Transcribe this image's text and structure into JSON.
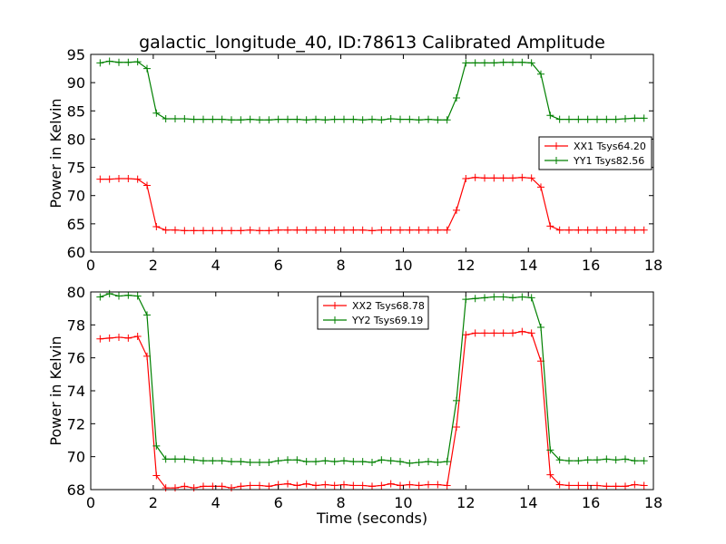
{
  "title": "galactic_longitude_40, ID:78613 Calibrated Amplitude",
  "xlabel": "Time (seconds)",
  "colors": {
    "red": "#ff0000",
    "green": "#008000"
  },
  "chart_data": [
    {
      "type": "line",
      "title": "galactic_longitude_40, ID:78613 Calibrated Amplitude",
      "xlabel": "",
      "ylabel": "Power in Kelvin",
      "xlim": [
        0,
        18
      ],
      "ylim": [
        60,
        95
      ],
      "xticks": [
        0,
        2,
        4,
        6,
        8,
        10,
        12,
        14,
        16,
        18
      ],
      "yticks": [
        60,
        65,
        70,
        75,
        80,
        85,
        90,
        95
      ],
      "grid": false,
      "legend_position": "center-right",
      "x": [
        0.3,
        0.6,
        0.9,
        1.2,
        1.5,
        1.8,
        2.1,
        2.4,
        2.7,
        3.0,
        3.3,
        3.6,
        3.9,
        4.2,
        4.5,
        4.8,
        5.1,
        5.4,
        5.7,
        6.0,
        6.3,
        6.6,
        6.9,
        7.2,
        7.5,
        7.8,
        8.1,
        8.4,
        8.7,
        9.0,
        9.3,
        9.6,
        9.9,
        10.2,
        10.5,
        10.8,
        11.1,
        11.4,
        11.7,
        12.0,
        12.3,
        12.6,
        12.9,
        13.2,
        13.5,
        13.8,
        14.1,
        14.4,
        14.7,
        15.0,
        15.3,
        15.6,
        15.9,
        16.2,
        16.5,
        16.8,
        17.1,
        17.4,
        17.7
      ],
      "series": [
        {
          "name": "XX1 Tsys64.20",
          "color": "#ff0000",
          "values": [
            72.9,
            72.9,
            73.0,
            73.0,
            72.9,
            71.8,
            64.5,
            63.9,
            63.9,
            63.8,
            63.8,
            63.8,
            63.8,
            63.8,
            63.8,
            63.8,
            63.9,
            63.8,
            63.8,
            63.9,
            63.9,
            63.9,
            63.9,
            63.9,
            63.9,
            63.9,
            63.9,
            63.9,
            63.9,
            63.8,
            63.9,
            63.9,
            63.9,
            63.9,
            63.9,
            63.9,
            63.9,
            63.9,
            67.4,
            73.0,
            73.2,
            73.1,
            73.1,
            73.1,
            73.1,
            73.2,
            73.1,
            71.5,
            64.6,
            63.9,
            63.9,
            63.9,
            63.9,
            63.9,
            63.9,
            63.9,
            63.9,
            63.9,
            63.9
          ]
        },
        {
          "name": "YY1 Tsys82.56",
          "color": "#008000",
          "values": [
            93.5,
            93.8,
            93.6,
            93.6,
            93.7,
            92.5,
            84.6,
            83.6,
            83.6,
            83.6,
            83.5,
            83.5,
            83.5,
            83.5,
            83.4,
            83.4,
            83.5,
            83.4,
            83.4,
            83.5,
            83.5,
            83.5,
            83.4,
            83.5,
            83.4,
            83.5,
            83.5,
            83.5,
            83.4,
            83.5,
            83.4,
            83.6,
            83.5,
            83.5,
            83.4,
            83.5,
            83.4,
            83.4,
            87.3,
            93.5,
            93.5,
            93.5,
            93.5,
            93.6,
            93.6,
            93.6,
            93.5,
            91.5,
            84.2,
            83.5,
            83.5,
            83.5,
            83.5,
            83.5,
            83.5,
            83.5,
            83.6,
            83.7,
            83.7
          ]
        }
      ]
    },
    {
      "type": "line",
      "title": "",
      "xlabel": "Time (seconds)",
      "ylabel": "Power in Kelvin",
      "xlim": [
        0,
        18
      ],
      "ylim": [
        68,
        80
      ],
      "xticks": [
        0,
        2,
        4,
        6,
        8,
        10,
        12,
        14,
        16,
        18
      ],
      "yticks": [
        68,
        70,
        72,
        74,
        76,
        78,
        80
      ],
      "grid": false,
      "legend_position": "upper-center",
      "x": [
        0.3,
        0.6,
        0.9,
        1.2,
        1.5,
        1.8,
        2.1,
        2.4,
        2.7,
        3.0,
        3.3,
        3.6,
        3.9,
        4.2,
        4.5,
        4.8,
        5.1,
        5.4,
        5.7,
        6.0,
        6.3,
        6.6,
        6.9,
        7.2,
        7.5,
        7.8,
        8.1,
        8.4,
        8.7,
        9.0,
        9.3,
        9.6,
        9.9,
        10.2,
        10.5,
        10.8,
        11.1,
        11.4,
        11.7,
        12.0,
        12.3,
        12.6,
        12.9,
        13.2,
        13.5,
        13.8,
        14.1,
        14.4,
        14.7,
        15.0,
        15.3,
        15.6,
        15.9,
        16.2,
        16.5,
        16.8,
        17.1,
        17.4,
        17.7
      ],
      "series": [
        {
          "name": "XX2 Tsys68.78",
          "color": "#ff0000",
          "values": [
            77.15,
            77.2,
            77.25,
            77.2,
            77.3,
            76.1,
            68.85,
            68.1,
            68.1,
            68.2,
            68.1,
            68.2,
            68.2,
            68.2,
            68.1,
            68.2,
            68.25,
            68.25,
            68.2,
            68.3,
            68.35,
            68.25,
            68.35,
            68.25,
            68.3,
            68.25,
            68.3,
            68.25,
            68.25,
            68.2,
            68.25,
            68.35,
            68.25,
            68.3,
            68.25,
            68.3,
            68.3,
            68.25,
            71.8,
            77.4,
            77.5,
            77.5,
            77.5,
            77.5,
            77.5,
            77.6,
            77.5,
            75.8,
            68.9,
            68.3,
            68.25,
            68.25,
            68.25,
            68.25,
            68.2,
            68.2,
            68.2,
            68.3,
            68.25
          ]
        },
        {
          "name": "YY2 Tsys69.19",
          "color": "#008000",
          "values": [
            79.7,
            79.9,
            79.75,
            79.8,
            79.75,
            78.6,
            70.65,
            69.85,
            69.85,
            69.85,
            69.8,
            69.75,
            69.75,
            69.75,
            69.7,
            69.7,
            69.65,
            69.65,
            69.65,
            69.75,
            69.8,
            69.8,
            69.7,
            69.7,
            69.75,
            69.7,
            69.75,
            69.7,
            69.7,
            69.65,
            69.8,
            69.75,
            69.7,
            69.6,
            69.65,
            69.7,
            69.65,
            69.7,
            73.4,
            79.55,
            79.6,
            79.65,
            79.7,
            79.7,
            79.65,
            79.7,
            79.65,
            77.85,
            70.4,
            69.8,
            69.75,
            69.75,
            69.8,
            69.8,
            69.85,
            69.8,
            69.85,
            69.75,
            69.75
          ]
        }
      ]
    }
  ]
}
